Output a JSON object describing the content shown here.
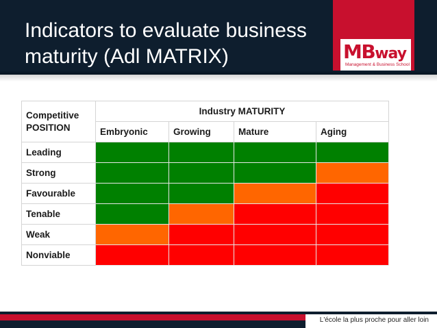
{
  "header": {
    "title_line1": "Indicators to evaluate business",
    "title_line2": "maturity (Adl MATRIX)"
  },
  "logo": {
    "word_main": "MB",
    "word_tail": "way",
    "tagline": "Management & Business School"
  },
  "matrix": {
    "corner_line1": "Competitive",
    "corner_line2": "POSITION",
    "group_header": "Industry MATURITY",
    "columns": [
      "Embryonic",
      "Growing",
      "Mature",
      "Aging"
    ],
    "rows": [
      {
        "label": "Leading",
        "ratings": [
          "green",
          "green",
          "green",
          "green"
        ]
      },
      {
        "label": "Strong",
        "ratings": [
          "green",
          "green",
          "green",
          "orange"
        ]
      },
      {
        "label": "Favourable",
        "ratings": [
          "green",
          "green",
          "orange",
          "red"
        ]
      },
      {
        "label": "Tenable",
        "ratings": [
          "green",
          "orange",
          "red",
          "red"
        ]
      },
      {
        "label": "Weak",
        "ratings": [
          "orange",
          "red",
          "red",
          "red"
        ]
      },
      {
        "label": "Nonviable",
        "ratings": [
          "red",
          "red",
          "red",
          "red"
        ]
      }
    ]
  },
  "colors": {
    "green": "#008000",
    "orange": "#ff6600",
    "red": "#ff0000",
    "brand_red": "#c8102e",
    "navy": "#0e1e2e"
  },
  "footer": {
    "slogan": "L'école la plus proche pour aller loin"
  }
}
